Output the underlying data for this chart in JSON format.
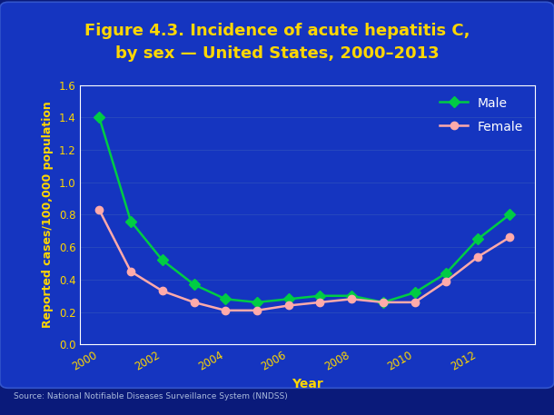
{
  "title_line1": "Figure 4.3. Incidence of acute hepatitis C,",
  "title_line2": "by sex — United States, 2000–2013",
  "xlabel": "Year",
  "ylabel": "Reported cases/100,000 population",
  "source": "Source: National Notifiable Diseases Surveillance System (NNDSS)",
  "years": [
    2000,
    2001,
    2002,
    2003,
    2004,
    2005,
    2006,
    2007,
    2008,
    2009,
    2010,
    2011,
    2012,
    2013
  ],
  "male": [
    1.4,
    0.76,
    0.52,
    0.37,
    0.28,
    0.26,
    0.28,
    0.3,
    0.3,
    0.26,
    0.32,
    0.44,
    0.65,
    0.8
  ],
  "female": [
    0.83,
    0.45,
    0.33,
    0.26,
    0.21,
    0.21,
    0.24,
    0.26,
    0.28,
    0.26,
    0.26,
    0.39,
    0.54,
    0.66
  ],
  "male_color": "#00cc44",
  "female_color": "#ffaaaa",
  "bg_outer": "#0a1a7a",
  "bg_inner": "#1535c0",
  "bg_inner_edge": "#3355cc",
  "plot_bg_color": "#1535c0",
  "title_color": "#ffd700",
  "spine_color": "#ffffff",
  "tick_color": "#ffd700",
  "label_color": "#ffd700",
  "legend_text_color": "#ffffff",
  "source_color": "#aabbdd",
  "ylim": [
    0.0,
    1.6
  ],
  "yticks": [
    0.0,
    0.2,
    0.4,
    0.6,
    0.8,
    1.0,
    1.2,
    1.4,
    1.6
  ],
  "xticks": [
    2000,
    2002,
    2004,
    2006,
    2008,
    2010,
    2012
  ],
  "grid_color": "#3355bb",
  "marker_size": 6,
  "title_fontsize": 13,
  "tick_fontsize": 8.5,
  "label_fontsize": 9,
  "xlabel_fontsize": 10
}
